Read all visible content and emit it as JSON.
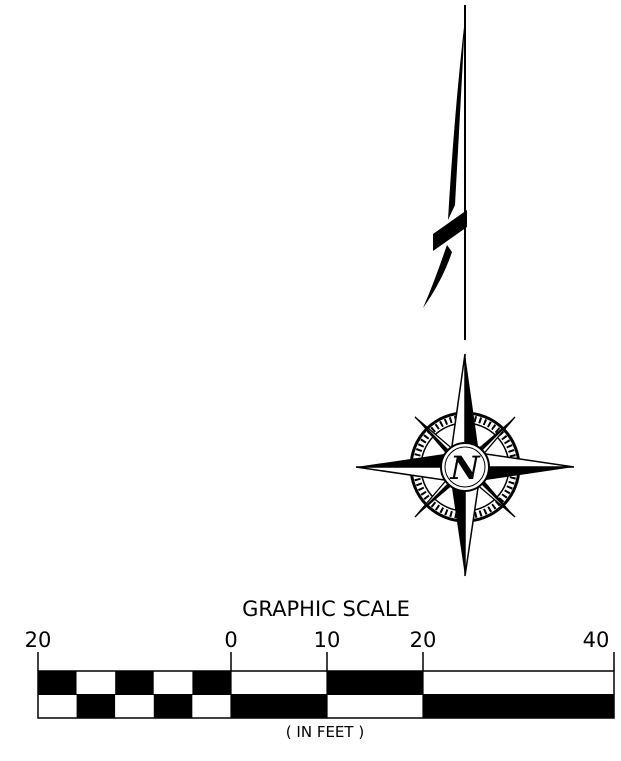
{
  "north_arrow": {
    "label": "N"
  },
  "graphic_scale": {
    "title": "GRAPHIC SCALE",
    "units": "( IN FEET )",
    "tick_labels": [
      "20",
      "0",
      "10",
      "20",
      "40"
    ]
  }
}
